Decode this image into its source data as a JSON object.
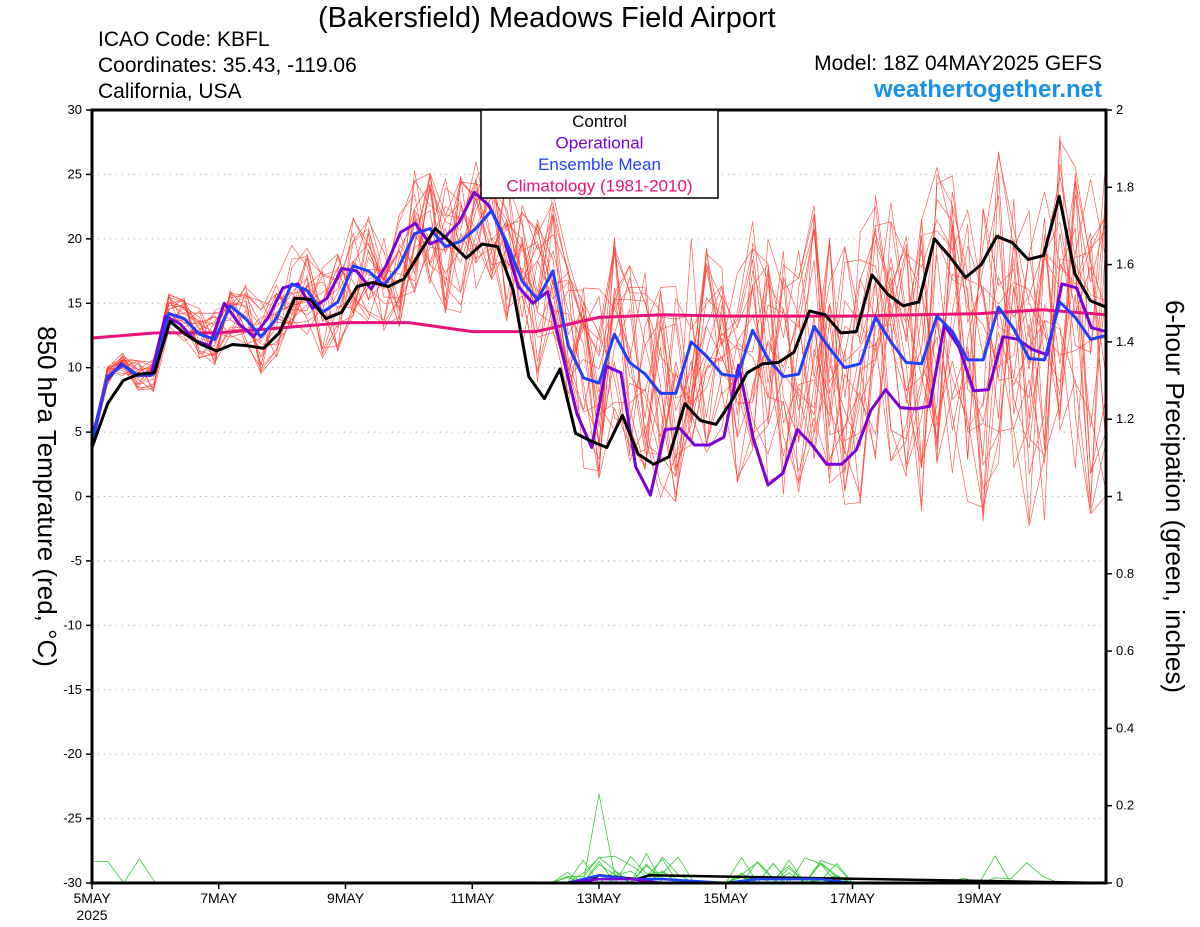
{
  "header": {
    "title": "(Bakersfield) Meadows Field Airport",
    "icao": "ICAO Code: KBFL",
    "coords": "Coordinates: 35.43, -119.06",
    "region": "California, USA",
    "model": "Model: 18Z 04MAY2025 GEFS",
    "site": "weathertogether.net"
  },
  "colors": {
    "control": "#000000",
    "operational": "#7a00d6",
    "ensemble_mean": "#2040ff",
    "climatology": "#e8127a",
    "members_temp": "#ff3a2a",
    "members_precip": "#33cc33",
    "site": "#1a8fe8"
  },
  "chart_data": {
    "type": "line",
    "title": "(Bakersfield) Meadows Field Airport",
    "ylabel": "850 hPa Temprature (red, °C)",
    "y2label": "6-hour Precipation (green, inches)",
    "ylim": [
      -30,
      30
    ],
    "y2lim": [
      0,
      2
    ],
    "yticks": [
      30,
      25,
      20,
      15,
      10,
      5,
      0,
      -5,
      -10,
      -15,
      -20,
      -25,
      -30
    ],
    "y2ticks": [
      "2",
      "1.8",
      "1.6",
      "1.4",
      "1.2",
      "1",
      "0.8",
      "0.6",
      "0.4",
      "0.2",
      "0"
    ],
    "xlim": [
      0,
      16
    ],
    "xticks": [
      {
        "x": 0,
        "label": "5MAY",
        "sub": "2025"
      },
      {
        "x": 2,
        "label": "7MAY"
      },
      {
        "x": 4,
        "label": "9MAY"
      },
      {
        "x": 6,
        "label": "11MAY"
      },
      {
        "x": 8,
        "label": "13MAY"
      },
      {
        "x": 10,
        "label": "15MAY"
      },
      {
        "x": 12,
        "label": "17MAY"
      },
      {
        "x": 14,
        "label": "19MAY"
      }
    ],
    "grid": true,
    "legend": {
      "placement": "top-center",
      "entries": [
        "Control",
        "Operational",
        "Ensemble Mean",
        "Climatology (1981-2010)"
      ]
    },
    "series": [
      {
        "name": "Control",
        "role": "control",
        "values": [
          3.8,
          7.2,
          9.0,
          9.5,
          9.6,
          13.6,
          12.6,
          11.8,
          11.3,
          11.8,
          11.7,
          11.5,
          12.7,
          15.4,
          15.3,
          13.8,
          14.3,
          16.3,
          16.6,
          16.3,
          16.9,
          18.9,
          20.8,
          19.7,
          18.5,
          19.6,
          19.4,
          16.0,
          9.3,
          7.6,
          9.9,
          4.9,
          4.3,
          3.8,
          6.3,
          3.3,
          2.5,
          3.1,
          7.2,
          5.9,
          5.6,
          7.4,
          9.6,
          10.3,
          10.4,
          11.2,
          14.4,
          14.1,
          12.7,
          12.8,
          17.2,
          15.7,
          14.8,
          15.1,
          20.0,
          18.6,
          17.0,
          18.0,
          20.2,
          19.7,
          18.4,
          18.7,
          23.3,
          17.3,
          15.2,
          14.7
        ]
      },
      {
        "name": "Operational",
        "role": "operational",
        "values": [
          4.5,
          9.0,
          10.3,
          9.4,
          9.4,
          14.0,
          13.4,
          12.1,
          11.7,
          15.0,
          13.4,
          12.4,
          13.9,
          16.2,
          16.5,
          14.6,
          15.4,
          17.7,
          17.5,
          16.1,
          17.9,
          20.5,
          21.2,
          19.6,
          20.1,
          21.3,
          23.6,
          22.6,
          20.2,
          16.3,
          15.0,
          15.9,
          11.1,
          6.4,
          3.8,
          10.1,
          9.6,
          2.3,
          0.1,
          5.2,
          5.3,
          4.0,
          4.0,
          4.6,
          10.2,
          4.5,
          0.9,
          1.8,
          5.2,
          4.0,
          2.5,
          2.5,
          3.6,
          6.7,
          8.3,
          6.9,
          6.8,
          7.0,
          13.3,
          11.6,
          8.2,
          8.3,
          12.4,
          12.2,
          11.4,
          11.0,
          16.5,
          16.2,
          13.1,
          12.8
        ]
      },
      {
        "name": "Ensemble Mean",
        "role": "ensemble_mean",
        "values": [
          4.2,
          9.3,
          10.2,
          9.4,
          9.5,
          14.2,
          13.8,
          12.6,
          12.2,
          14.8,
          13.8,
          12.4,
          13.8,
          16.5,
          16.0,
          14.3,
          15.1,
          17.9,
          17.5,
          16.4,
          17.9,
          20.4,
          20.8,
          19.4,
          19.8,
          20.8,
          22.2,
          19.7,
          16.7,
          15.3,
          17.5,
          11.7,
          9.2,
          8.8,
          12.6,
          10.4,
          9.5,
          8.0,
          8.0,
          12.0,
          10.9,
          9.5,
          9.3,
          12.9,
          10.7,
          9.3,
          9.5,
          13.2,
          11.5,
          10.0,
          10.3,
          13.9,
          12.0,
          10.4,
          10.3,
          14.0,
          12.8,
          10.6,
          10.6,
          14.7,
          13.0,
          10.7,
          10.6,
          15.1,
          13.9,
          12.2,
          12.5
        ]
      },
      {
        "name": "Climatology (1981-2010)",
        "role": "climatology",
        "x": [
          0,
          1,
          2,
          3,
          4,
          5,
          6,
          7,
          8,
          9,
          10,
          11,
          12,
          13,
          14,
          15,
          16
        ],
        "values": [
          12.3,
          12.7,
          12.7,
          13.1,
          13.5,
          13.5,
          12.8,
          12.8,
          13.9,
          14.1,
          14.0,
          14.0,
          14.0,
          14.1,
          14.2,
          14.5,
          14.1
        ]
      }
    ],
    "precip_series": [
      {
        "name": "Control",
        "role": "control",
        "x": [
          0,
          7.8,
          8.0,
          8.6,
          8.8,
          16
        ],
        "values": [
          0,
          0,
          0.02,
          0.01,
          0.02,
          0
        ]
      },
      {
        "name": "Ensemble Mean",
        "role": "ensemble_mean",
        "x": [
          0,
          7.5,
          8.0,
          8.5,
          9.0,
          10.0,
          10.5,
          11.0,
          11.5,
          12.0,
          16
        ],
        "values": [
          0,
          0,
          0.02,
          0.01,
          0.01,
          0,
          0.01,
          0.01,
          0.01,
          0,
          0
        ]
      },
      {
        "name": "Operational",
        "role": "operational",
        "x": [
          0,
          7.5,
          8.0,
          8.5,
          9.0,
          16
        ],
        "values": [
          0,
          0,
          0.01,
          0.01,
          0,
          0
        ]
      }
    ]
  }
}
